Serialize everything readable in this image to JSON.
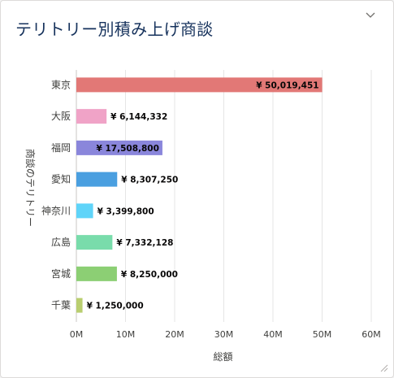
{
  "widget": {
    "title": "テリトリー別積み上げ商談",
    "menu_icon": "chevron-down-icon",
    "resize_icon": "resize-handle-icon"
  },
  "chart_data": {
    "type": "bar",
    "orientation": "horizontal",
    "title": "テリトリー別積み上げ商談",
    "xlabel": "総額",
    "ylabel": "商談のテリトリー",
    "xlim": [
      0,
      60000000
    ],
    "x_ticks": [
      "0M",
      "10M",
      "20M",
      "30M",
      "40M",
      "50M",
      "60M"
    ],
    "grid": true,
    "categories": [
      "東京",
      "大阪",
      "福岡",
      "愛知",
      "神奈川",
      "広島",
      "宮城",
      "千葉"
    ],
    "values": [
      50019451,
      6144332,
      17508800,
      8307250,
      3399800,
      7332128,
      8250000,
      1250000
    ],
    "data_labels": [
      "¥ 50,019,451",
      "¥ 6,144,332",
      "¥ 17,508,800",
      "¥ 8,307,250",
      "¥ 3,399,800",
      "¥ 7,332,128",
      "¥ 8,250,000",
      "¥ 1,250,000"
    ],
    "colors": [
      "#e27876",
      "#f0a3c7",
      "#8a86db",
      "#4a9fe0",
      "#5fd4f9",
      "#79dcab",
      "#8ccf74",
      "#b9ce6f"
    ]
  }
}
